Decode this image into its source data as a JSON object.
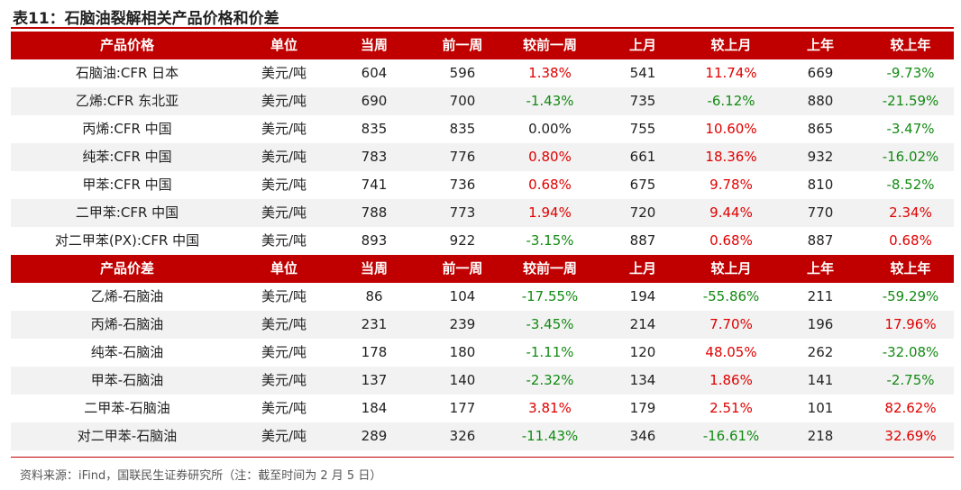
{
  "title": "表11：石脑油裂解相关产品价格和价差",
  "sections": [
    {
      "header": [
        "产品价格",
        "单位",
        "当周",
        "前一周",
        "较前一周",
        "上月",
        "较上月",
        "上年",
        "较上年"
      ],
      "rows": [
        [
          "石脑油:CFR 日本",
          "美元/吨",
          "604",
          "596",
          "1.38%",
          "541",
          "11.74%",
          "669",
          "-9.73%"
        ],
        [
          "乙烯:CFR 东北亚",
          "美元/吨",
          "690",
          "700",
          "-1.43%",
          "735",
          "-6.12%",
          "880",
          "-21.59%"
        ],
        [
          "丙烯:CFR 中国",
          "美元/吨",
          "835",
          "835",
          "0.00%",
          "755",
          "10.60%",
          "865",
          "-3.47%"
        ],
        [
          "纯苯:CFR 中国",
          "美元/吨",
          "783",
          "776",
          "0.80%",
          "661",
          "18.36%",
          "932",
          "-16.02%"
        ],
        [
          "甲苯:CFR 中国",
          "美元/吨",
          "741",
          "736",
          "0.68%",
          "675",
          "9.78%",
          "810",
          "-8.52%"
        ],
        [
          "二甲苯:CFR 中国",
          "美元/吨",
          "788",
          "773",
          "1.94%",
          "720",
          "9.44%",
          "770",
          "2.34%"
        ],
        [
          "对二甲苯(PX):CFR 中国",
          "美元/吨",
          "893",
          "922",
          "-3.15%",
          "887",
          "0.68%",
          "887",
          "0.68%"
        ]
      ]
    },
    {
      "header": [
        "产品价差",
        "单位",
        "当周",
        "前一周",
        "较前一周",
        "上月",
        "较上月",
        "上年",
        "较上年"
      ],
      "rows": [
        [
          "乙烯-石脑油",
          "美元/吨",
          "86",
          "104",
          "-17.55%",
          "194",
          "-55.86%",
          "211",
          "-59.29%"
        ],
        [
          "丙烯-石脑油",
          "美元/吨",
          "231",
          "239",
          "-3.45%",
          "214",
          "7.70%",
          "196",
          "17.96%"
        ],
        [
          "纯苯-石脑油",
          "美元/吨",
          "178",
          "180",
          "-1.11%",
          "120",
          "48.05%",
          "262",
          "-32.08%"
        ],
        [
          "甲苯-石脑油",
          "美元/吨",
          "137",
          "140",
          "-2.32%",
          "134",
          "1.86%",
          "141",
          "-2.75%"
        ],
        [
          "二甲苯-石脑油",
          "美元/吨",
          "184",
          "177",
          "3.81%",
          "179",
          "2.51%",
          "101",
          "82.62%"
        ],
        [
          "对二甲苯-石脑油",
          "美元/吨",
          "289",
          "326",
          "-11.43%",
          "346",
          "-16.61%",
          "218",
          "32.69%"
        ]
      ]
    }
  ],
  "source": "资料来源：iFind，国联民生证券研究所（注：截至时间为 2 月 5 日）"
}
